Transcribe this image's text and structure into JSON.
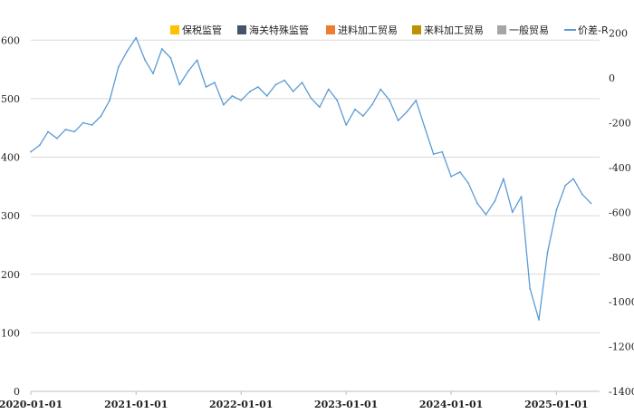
{
  "chart_data": {
    "type": "bar",
    "title": "",
    "left_axis": {
      "ylim": [
        0,
        650
      ],
      "ticks": [
        0,
        100,
        200,
        300,
        400,
        500,
        600
      ]
    },
    "right_axis": {
      "ylim": [
        -1400,
        300
      ],
      "ticks": [
        -1400,
        -1200,
        -1000,
        -800,
        -600,
        -400,
        -200,
        0,
        200
      ]
    },
    "x_range": [
      "2020-01-01",
      "2025-05-31"
    ],
    "x_ticks": [
      "2020-01-01",
      "2021-01-01",
      "2022-01-01",
      "2023-01-01",
      "2024-01-01",
      "2025-01-01"
    ],
    "legend": {
      "placement": "top-right",
      "items": [
        {
          "key": "bonded",
          "name": "保税监管",
          "color": "#ffc000",
          "kind": "bar"
        },
        {
          "key": "special",
          "name": "海关特殊监管",
          "color": "#44546a",
          "kind": "bar"
        },
        {
          "key": "processing_import",
          "name": "进料加工贸易",
          "color": "#ed7d31",
          "kind": "bar"
        },
        {
          "key": "processing_supplied",
          "name": "来料加工贸易",
          "color": "#bf9000",
          "kind": "bar"
        },
        {
          "key": "general",
          "name": "一般贸易",
          "color": "#a5a5a5",
          "kind": "bar"
        },
        {
          "key": "spread",
          "name": "价差-R",
          "color": "#5b9bd5",
          "kind": "line"
        }
      ]
    },
    "months": [
      "2020-01",
      "2020-02",
      "2020-03",
      "2020-04",
      "2020-05",
      "2020-06",
      "2020-07",
      "2020-08",
      "2020-09",
      "2020-10",
      "2020-11",
      "2020-12",
      "2021-01",
      "2021-02",
      "2021-03",
      "2021-04",
      "2021-05",
      "2021-06",
      "2021-07",
      "2021-08",
      "2021-09",
      "2021-10",
      "2021-11",
      "2021-12",
      "2022-01",
      "2022-02",
      "2022-03",
      "2022-04",
      "2022-05",
      "2022-06",
      "2022-07",
      "2022-08",
      "2022-09",
      "2022-10",
      "2022-11",
      "2022-12",
      "2023-01",
      "2023-02",
      "2023-03",
      "2023-04",
      "2023-05",
      "2023-06",
      "2023-07",
      "2023-08",
      "2023-09",
      "2023-10",
      "2023-11",
      "2023-12",
      "2024-01",
      "2024-02",
      "2024-03",
      "2024-04",
      "2024-05",
      "2024-06",
      "2024-07",
      "2024-08",
      "2024-09",
      "2024-10",
      "2024-11",
      "2024-12",
      "2025-01",
      "2025-02",
      "2025-03",
      "2025-04",
      "2025-05"
    ],
    "series": [
      {
        "key": "bonded",
        "name": "保税监管",
        "values": [
          0,
          0,
          0,
          0,
          0,
          0,
          0,
          0,
          0,
          0,
          0,
          0,
          0,
          0,
          0,
          0,
          0,
          0,
          0,
          0,
          0,
          0,
          0,
          0,
          0,
          0,
          0,
          0,
          0,
          0,
          0,
          0,
          0,
          0,
          0,
          0,
          0,
          0,
          0,
          0,
          0,
          0,
          0,
          0,
          0,
          0,
          0,
          0,
          0,
          0,
          0,
          0,
          0,
          0,
          0,
          0,
          0,
          0,
          0,
          0,
          0,
          0,
          0,
          0,
          0
        ]
      },
      {
        "key": "special",
        "name": "海关特殊监管",
        "values": [
          0,
          0,
          0,
          0,
          0,
          0,
          0,
          0,
          0,
          0,
          0,
          0,
          0,
          0,
          0,
          0,
          0,
          0,
          0,
          0,
          0,
          0,
          0,
          0,
          0,
          0,
          0,
          0,
          0,
          0,
          0,
          0,
          0,
          0,
          0,
          0,
          0,
          0,
          0,
          0,
          0,
          0,
          0,
          0,
          0,
          0,
          0,
          0,
          0,
          0,
          0,
          0,
          0,
          0,
          0,
          0,
          0,
          0,
          0,
          0,
          0,
          0,
          0,
          0,
          0
        ]
      },
      {
        "key": "processing_import",
        "name": "进料加工贸易",
        "values": [
          0,
          0,
          0,
          0,
          0,
          0,
          0,
          0,
          0,
          0,
          0,
          0,
          0,
          0,
          0,
          0,
          0,
          0,
          0,
          0,
          0,
          0,
          0,
          0,
          0,
          0,
          0,
          0,
          0,
          0,
          0,
          0,
          0,
          0,
          0,
          0,
          0,
          0,
          0,
          0,
          0,
          0,
          0,
          0,
          0,
          0,
          0,
          0,
          0,
          0,
          0,
          0,
          0,
          0,
          0,
          0,
          0,
          0,
          0,
          0,
          0,
          0,
          0,
          0,
          0
        ]
      },
      {
        "key": "processing_supplied",
        "name": "来料加工贸易",
        "values": [
          0,
          0,
          0,
          0,
          0,
          0,
          0,
          0,
          0,
          0,
          0,
          0,
          0,
          0,
          0,
          0,
          0,
          0,
          0,
          0,
          0,
          0,
          0,
          0,
          0,
          0,
          0,
          0,
          0,
          0,
          0,
          0,
          0,
          0,
          0,
          0,
          0,
          0,
          0,
          0,
          0,
          0,
          0,
          0,
          0,
          0,
          0,
          0,
          0,
          0,
          0,
          0,
          0,
          0,
          0,
          0,
          0,
          0,
          0,
          0,
          0,
          0,
          0,
          0,
          0
        ]
      },
      {
        "key": "general",
        "name": "一般贸易",
        "values": [
          0,
          0,
          0,
          0,
          0,
          0,
          0,
          0,
          0,
          0,
          0,
          0,
          0,
          0,
          0,
          0,
          0,
          0,
          0,
          0,
          0,
          0,
          0,
          0,
          0,
          0,
          0,
          0,
          0,
          0,
          0,
          0,
          0,
          0,
          0,
          0,
          0,
          0,
          0,
          0,
          0,
          0,
          0,
          0,
          0,
          0,
          0,
          0,
          0,
          0,
          0,
          0,
          0,
          0,
          0,
          0,
          0,
          0,
          0,
          0,
          0,
          0,
          0,
          0,
          0
        ]
      }
    ],
    "spread_line": {
      "name": "价差-R",
      "dates": [
        "2020-01-01",
        "2020-02-01",
        "2020-03-01",
        "2020-04-01",
        "2020-05-01",
        "2020-06-01",
        "2020-07-01",
        "2020-08-01",
        "2020-09-01",
        "2020-10-01",
        "2020-11-01",
        "2020-12-01",
        "2021-01-01",
        "2021-02-01",
        "2021-03-01",
        "2021-04-01",
        "2021-05-01",
        "2021-06-01",
        "2021-07-01",
        "2021-08-01",
        "2021-09-01",
        "2021-10-01",
        "2021-11-01",
        "2021-12-01",
        "2022-01-01",
        "2022-02-01",
        "2022-03-01",
        "2022-04-01",
        "2022-05-01",
        "2022-06-01",
        "2022-07-01",
        "2022-08-01",
        "2022-09-01",
        "2022-10-01",
        "2022-11-01",
        "2022-12-01",
        "2023-01-01",
        "2023-02-01",
        "2023-03-01",
        "2023-04-01",
        "2023-05-01",
        "2023-06-01",
        "2023-07-01",
        "2023-08-01",
        "2023-09-01",
        "2023-10-01",
        "2023-11-01",
        "2023-12-01",
        "2024-01-01",
        "2024-02-01",
        "2024-03-01",
        "2024-04-01",
        "2024-05-01",
        "2024-06-01",
        "2024-07-01",
        "2024-08-01",
        "2024-09-01",
        "2024-10-01",
        "2024-11-01",
        "2024-12-01",
        "2025-01-01",
        "2025-02-01",
        "2025-03-01",
        "2025-04-01",
        "2025-05-01"
      ],
      "values": [
        -330,
        -300,
        -240,
        -270,
        -230,
        -240,
        -200,
        -210,
        -170,
        -100,
        50,
        120,
        180,
        80,
        20,
        130,
        90,
        -30,
        30,
        80,
        -40,
        -20,
        -120,
        -80,
        -100,
        -60,
        -40,
        -80,
        -30,
        -10,
        -60,
        -20,
        -90,
        -130,
        -50,
        -100,
        -210,
        -140,
        -170,
        -120,
        -50,
        -100,
        -190,
        -150,
        -100,
        -220,
        -340,
        -330,
        -440,
        -420,
        -470,
        -560,
        -610,
        -550,
        -450,
        -600,
        -530,
        -940,
        -1080,
        -780,
        -590,
        -480,
        -450,
        -520,
        -560
      ]
    }
  }
}
